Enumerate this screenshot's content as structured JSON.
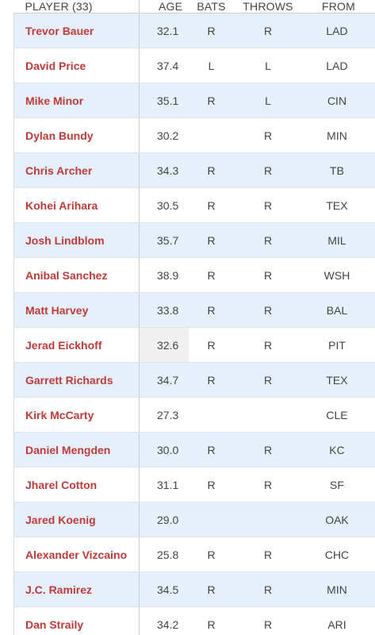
{
  "table": {
    "headers": {
      "player": "PLAYER (33)",
      "age": "AGE",
      "bats": "BATS",
      "throws": "THROWS",
      "from": "FROM"
    },
    "rows": [
      {
        "player": "Trevor Bauer",
        "age": "32.1",
        "bats": "R",
        "throws": "R",
        "from": "LAD"
      },
      {
        "player": "David Price",
        "age": "37.4",
        "bats": "L",
        "throws": "L",
        "from": "LAD"
      },
      {
        "player": "Mike Minor",
        "age": "35.1",
        "bats": "R",
        "throws": "L",
        "from": "CIN"
      },
      {
        "player": "Dylan Bundy",
        "age": "30.2",
        "bats": "",
        "throws": "R",
        "from": "MIN"
      },
      {
        "player": "Chris Archer",
        "age": "34.3",
        "bats": "R",
        "throws": "R",
        "from": "TB"
      },
      {
        "player": "Kohei Arihara",
        "age": "30.5",
        "bats": "R",
        "throws": "R",
        "from": "TEX"
      },
      {
        "player": "Josh Lindblom",
        "age": "35.7",
        "bats": "R",
        "throws": "R",
        "from": "MIL"
      },
      {
        "player": "Anibal Sanchez",
        "age": "38.9",
        "bats": "R",
        "throws": "R",
        "from": "WSH"
      },
      {
        "player": "Matt Harvey",
        "age": "33.8",
        "bats": "R",
        "throws": "R",
        "from": "BAL"
      },
      {
        "player": "Jerad Eickhoff",
        "age": "32.6",
        "bats": "R",
        "throws": "R",
        "from": "PIT"
      },
      {
        "player": "Garrett Richards",
        "age": "34.7",
        "bats": "R",
        "throws": "R",
        "from": "TEX"
      },
      {
        "player": "Kirk McCarty",
        "age": "27.3",
        "bats": "",
        "throws": "",
        "from": "CLE"
      },
      {
        "player": "Daniel Mengden",
        "age": "30.0",
        "bats": "R",
        "throws": "R",
        "from": "KC"
      },
      {
        "player": "Jharel Cotton",
        "age": "31.1",
        "bats": "R",
        "throws": "R",
        "from": "SF"
      },
      {
        "player": "Jared Koenig",
        "age": "29.0",
        "bats": "",
        "throws": "",
        "from": "OAK"
      },
      {
        "player": "Alexander Vizcaino",
        "age": "25.8",
        "bats": "R",
        "throws": "R",
        "from": "CHC"
      },
      {
        "player": "J.C. Ramirez",
        "age": "34.5",
        "bats": "R",
        "throws": "R",
        "from": "MIN"
      },
      {
        "player": "Dan Straily",
        "age": "34.2",
        "bats": "R",
        "throws": "R",
        "from": "ARI"
      }
    ]
  },
  "colors": {
    "player_link": "#c03a3a",
    "row_stripe": "#e6f0fb",
    "highlight_cell": "#f0f0f0"
  }
}
